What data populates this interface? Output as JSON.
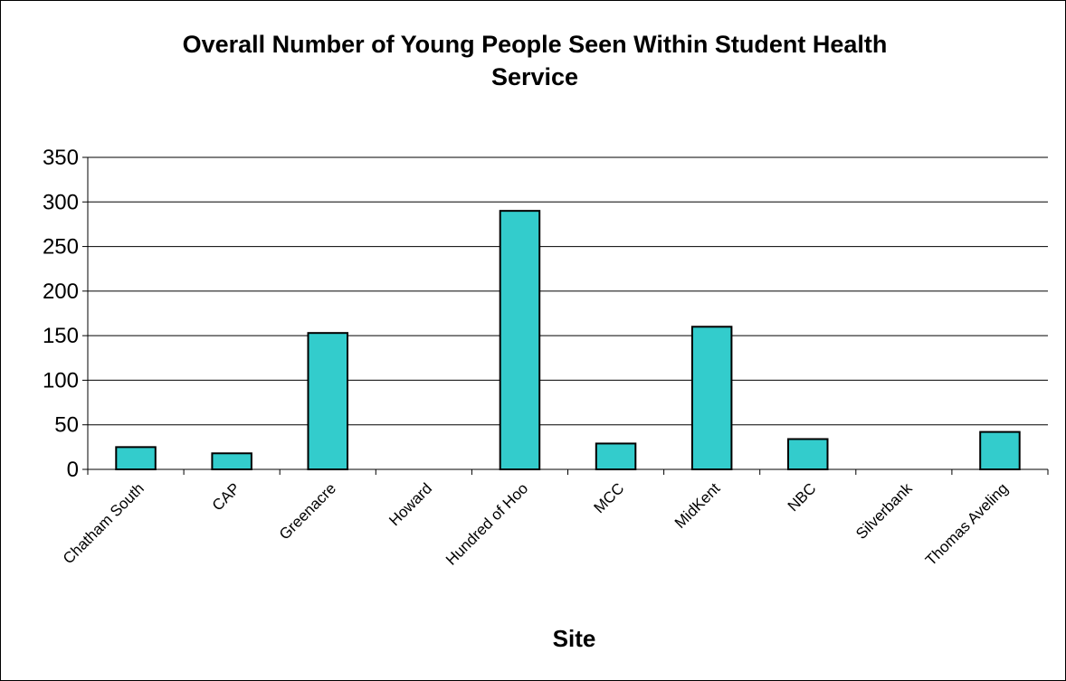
{
  "chart_data": {
    "type": "bar",
    "title_line1": "Overall Number of Young People Seen Within Student Health",
    "title_line2": "Service",
    "xlabel": "Site",
    "ylabel": "",
    "categories": [
      "Chatham South",
      "CAP",
      "Greenacre",
      "Howard",
      "Hundred of Hoo",
      "MCC",
      "MidKent",
      "NBC",
      "Silverbank",
      "Thomas Aveling"
    ],
    "values": [
      25,
      18,
      153,
      0,
      290,
      29,
      160,
      34,
      0,
      42
    ],
    "ylim": [
      0,
      350
    ],
    "yticks": [
      "0",
      "50",
      "100",
      "150",
      "200",
      "250",
      "300",
      "350"
    ],
    "grid": true,
    "bar_color": "#33CCCC",
    "bar_edge_color": "#000000"
  }
}
